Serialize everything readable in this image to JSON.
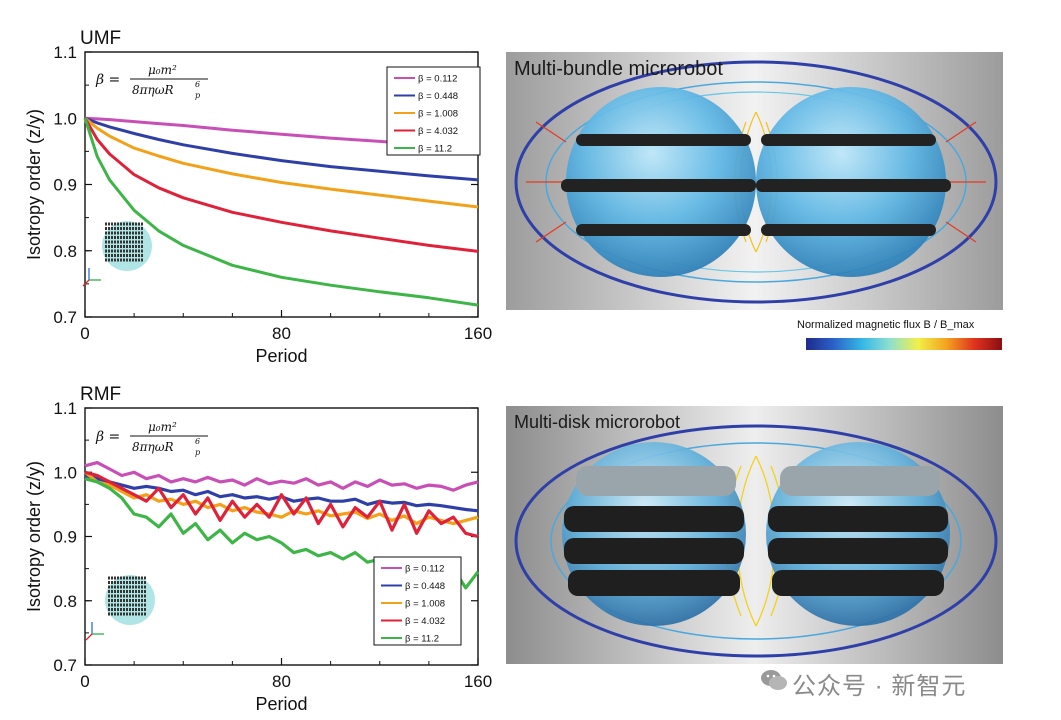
{
  "colors": {
    "beta_0_112": "#c84fb5",
    "beta_0_448": "#2f3fa8",
    "beta_1_008": "#f2a21a",
    "beta_4_032": "#e0213a",
    "beta_11_2": "#3db547",
    "cbar_low": "#1f2a8c",
    "cbar_high": "#8c0d12"
  },
  "formula": {
    "lhs": "β =",
    "numerator": "μ₀m²",
    "denominator": "8πηωR",
    "denominator_sub": "p",
    "denominator_sup": "6"
  },
  "chart_data": [
    {
      "type": "line",
      "title": "UMF",
      "xlabel": "Period",
      "ylabel": "Isotropy order (z/y)",
      "xlim": [
        0,
        160
      ],
      "ylim": [
        0.7,
        1.1
      ],
      "xticks": [
        "0",
        "80",
        "160"
      ],
      "yticks": [
        "0.7",
        "0.8",
        "0.9",
        "1.0",
        "1.1"
      ],
      "legend_position": "top-right",
      "x": [
        0,
        5,
        10,
        20,
        30,
        40,
        60,
        80,
        100,
        120,
        140,
        160
      ],
      "series": [
        {
          "name": "β = 0.112",
          "color": "#c84fb5",
          "values": [
            1.0,
            0.999,
            0.998,
            0.995,
            0.992,
            0.989,
            0.982,
            0.976,
            0.97,
            0.965,
            0.96,
            0.955
          ]
        },
        {
          "name": "β = 0.448",
          "color": "#2f3fa8",
          "values": [
            1.0,
            0.993,
            0.987,
            0.977,
            0.968,
            0.96,
            0.947,
            0.936,
            0.927,
            0.92,
            0.913,
            0.907
          ]
        },
        {
          "name": "β = 1.008",
          "color": "#f2a21a",
          "values": [
            1.0,
            0.985,
            0.973,
            0.955,
            0.943,
            0.932,
            0.916,
            0.903,
            0.893,
            0.884,
            0.875,
            0.866
          ]
        },
        {
          "name": "β = 4.032",
          "color": "#e0213a",
          "values": [
            1.0,
            0.968,
            0.946,
            0.915,
            0.895,
            0.88,
            0.858,
            0.843,
            0.83,
            0.819,
            0.808,
            0.799
          ]
        },
        {
          "name": "β = 11.2",
          "color": "#3db547",
          "values": [
            1.0,
            0.942,
            0.907,
            0.861,
            0.83,
            0.808,
            0.778,
            0.76,
            0.748,
            0.738,
            0.729,
            0.718
          ]
        }
      ]
    },
    {
      "type": "line",
      "title": "RMF",
      "xlabel": "Period",
      "ylabel": "Isotropy order (z/y)",
      "xlim": [
        0,
        160
      ],
      "ylim": [
        0.7,
        1.1
      ],
      "xticks": [
        "0",
        "80",
        "160"
      ],
      "yticks": [
        "0.7",
        "0.8",
        "0.9",
        "1.0",
        "1.1"
      ],
      "legend_position": "bottom-right",
      "x": [
        0,
        5,
        10,
        15,
        20,
        25,
        30,
        35,
        40,
        45,
        50,
        55,
        60,
        65,
        70,
        75,
        80,
        85,
        90,
        95,
        100,
        105,
        110,
        115,
        120,
        125,
        130,
        135,
        140,
        145,
        150,
        155,
        160
      ],
      "series": [
        {
          "name": "β = 0.112",
          "color": "#c84fb5",
          "values": [
            1.01,
            1.015,
            1.005,
            0.995,
            1.0,
            0.99,
            0.995,
            0.985,
            0.99,
            0.985,
            0.992,
            0.985,
            0.988,
            0.98,
            0.99,
            0.982,
            0.986,
            0.983,
            0.99,
            0.98,
            0.985,
            0.975,
            0.985,
            0.978,
            0.988,
            0.98,
            0.982,
            0.975,
            0.98,
            0.978,
            0.972,
            0.98,
            0.985
          ]
        },
        {
          "name": "β = 0.448",
          "color": "#2f3fa8",
          "values": [
            0.995,
            0.99,
            0.985,
            0.98,
            0.975,
            0.978,
            0.975,
            0.97,
            0.972,
            0.965,
            0.97,
            0.962,
            0.965,
            0.96,
            0.962,
            0.958,
            0.962,
            0.955,
            0.958,
            0.96,
            0.955,
            0.955,
            0.958,
            0.95,
            0.955,
            0.952,
            0.953,
            0.948,
            0.95,
            0.948,
            0.945,
            0.942,
            0.94
          ]
        },
        {
          "name": "β = 1.008",
          "color": "#f2a21a",
          "values": [
            1.0,
            0.985,
            0.98,
            0.97,
            0.96,
            0.965,
            0.955,
            0.958,
            0.95,
            0.955,
            0.945,
            0.95,
            0.94,
            0.945,
            0.938,
            0.935,
            0.93,
            0.94,
            0.935,
            0.94,
            0.932,
            0.935,
            0.938,
            0.928,
            0.935,
            0.925,
            0.932,
            0.92,
            0.93,
            0.925,
            0.92,
            0.925,
            0.93
          ]
        },
        {
          "name": "β = 4.032",
          "color": "#e0213a",
          "values": [
            1.0,
            0.995,
            0.985,
            0.975,
            0.965,
            0.955,
            0.975,
            0.945,
            0.965,
            0.935,
            0.96,
            0.925,
            0.955,
            0.93,
            0.95,
            0.93,
            0.965,
            0.935,
            0.96,
            0.92,
            0.95,
            0.915,
            0.945,
            0.93,
            0.955,
            0.91,
            0.95,
            0.905,
            0.94,
            0.92,
            0.93,
            0.905,
            0.9
          ]
        },
        {
          "name": "β = 11.2",
          "color": "#3db547",
          "values": [
            0.99,
            0.985,
            0.975,
            0.96,
            0.935,
            0.93,
            0.915,
            0.935,
            0.905,
            0.92,
            0.895,
            0.91,
            0.89,
            0.905,
            0.895,
            0.9,
            0.89,
            0.875,
            0.88,
            0.87,
            0.875,
            0.865,
            0.875,
            0.86,
            0.865,
            0.855,
            0.86,
            0.835,
            0.845,
            0.83,
            0.85,
            0.82,
            0.845
          ]
        }
      ]
    }
  ],
  "renders": {
    "top": {
      "title": "Multi-bundle microrobot"
    },
    "bottom": {
      "title": "Multi-disk microrobot"
    }
  },
  "colorbar": {
    "label": "Normalized magnetic flux B / B_max"
  },
  "watermark": {
    "text": "公众号 · 新智元"
  }
}
